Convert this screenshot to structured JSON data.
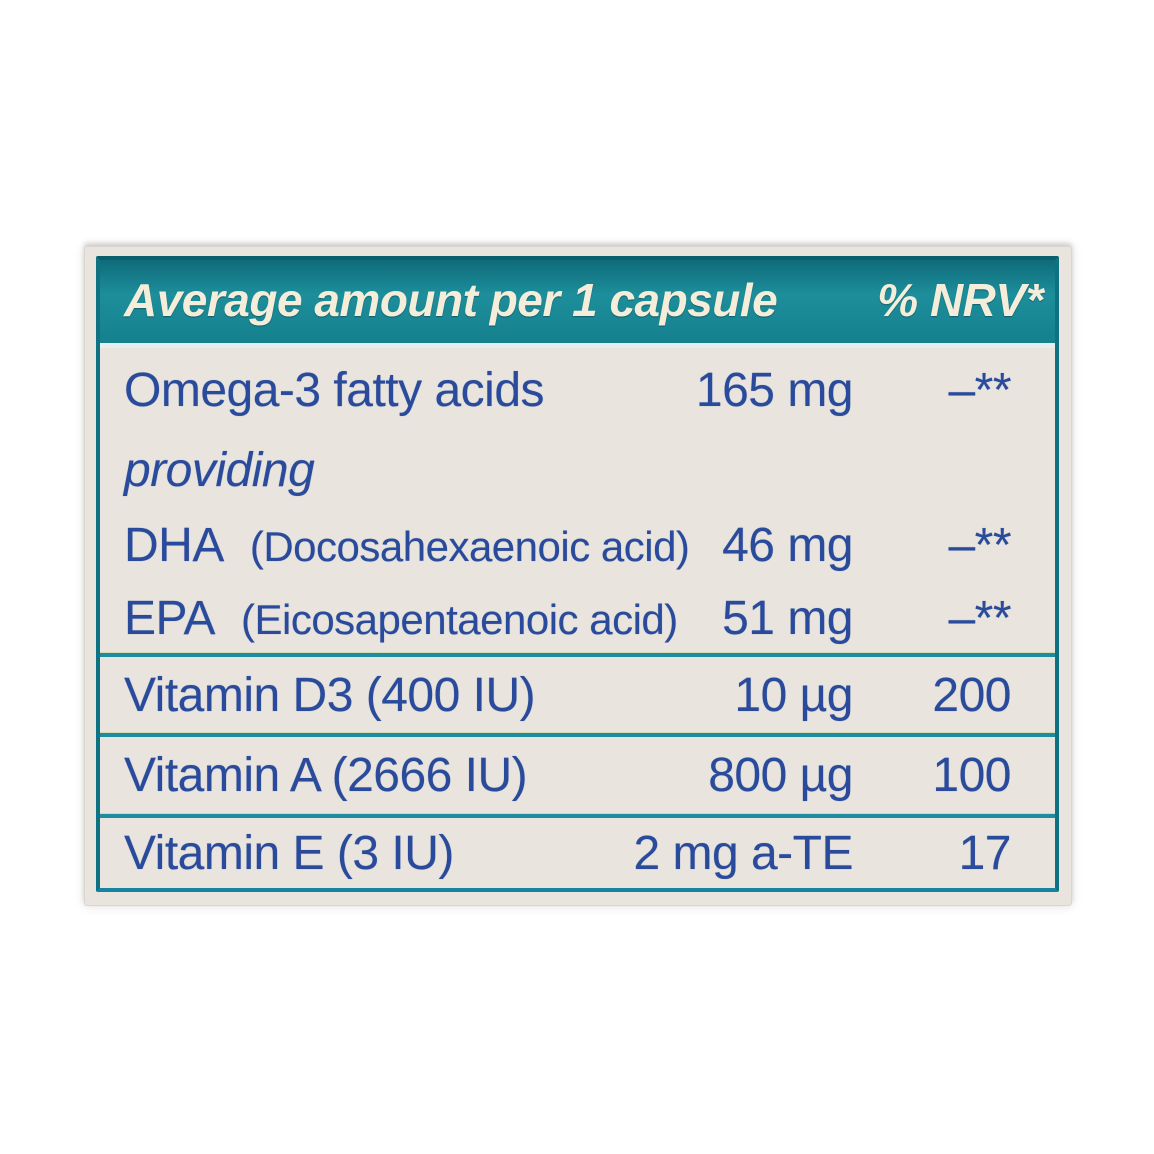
{
  "colors": {
    "header_teal": "#17828f",
    "table_border": "#0f7282",
    "separator_teal": "#1d8ca1",
    "body_text_blue": "#2a4a9c",
    "label_cream": "#e9e5de",
    "header_text_cream": "#f3edda",
    "page_background": "#ffffff"
  },
  "table": {
    "header": {
      "title": "Average amount per 1 capsule",
      "nrv_label": "% NRV*"
    },
    "rows": [
      {
        "name": "Omega-3 fatty acids",
        "amount": "165 mg",
        "nrv": "–**"
      },
      {
        "name": "providing"
      },
      {
        "abbr": "DHA",
        "detail": "(Docosahexaenoic acid)",
        "amount": "46 mg",
        "nrv": "–**"
      },
      {
        "abbr": "EPA",
        "detail": "(Eicosapentaenoic acid)",
        "amount": "51 mg",
        "nrv": "–**"
      },
      {
        "name": "Vitamin D3 (400 IU)",
        "amount": "10 µg",
        "nrv": "200"
      },
      {
        "name": "Vitamin A (2666 IU)",
        "amount": "800 µg",
        "nrv": "100"
      },
      {
        "name": "Vitamin E (3 IU)",
        "amount": "2 mg a-TE",
        "nrv": "17"
      }
    ]
  }
}
